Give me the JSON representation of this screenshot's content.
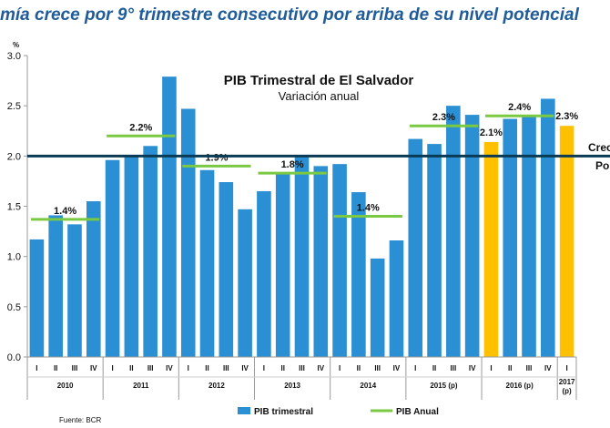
{
  "headline": "mía crece por 9° trimestre consecutivo por arriba de su nivel potencial",
  "source": "Fuente: BCR",
  "right_note": [
    "Crec",
    "Po"
  ],
  "colors": {
    "quarterly": "#2A8FD3",
    "forecast": "#FFC000",
    "annual": "#7AC943",
    "potential_line": "#0B3B54",
    "headline": "#1F5C99"
  },
  "chart_data": {
    "type": "bar",
    "title": "PIB Trimestral de El Salvador",
    "subtitle": "Variación anual",
    "ylabel": "%",
    "ylim": [
      0,
      3.0
    ],
    "yticks": [
      "0.0",
      "0.5",
      "1.0",
      "1.5",
      "2.0",
      "2.5",
      "3.0"
    ],
    "quarters": [
      "I",
      "II",
      "III",
      "IV",
      "I",
      "II",
      "III",
      "IV",
      "I",
      "II",
      "III",
      "IV",
      "I",
      "II",
      "III",
      "IV",
      "I",
      "II",
      "III",
      "IV",
      "I",
      "II",
      "III",
      "IV",
      "I",
      "II",
      "III",
      "IV",
      "I"
    ],
    "values": [
      1.17,
      1.41,
      1.32,
      1.55,
      1.96,
      2.0,
      2.1,
      2.79,
      2.47,
      1.86,
      1.74,
      1.47,
      1.65,
      1.82,
      2.0,
      1.9,
      1.92,
      1.64,
      0.98,
      1.16,
      2.17,
      2.12,
      2.5,
      2.41,
      2.14,
      2.37,
      2.4,
      2.57,
      2.3
    ],
    "highlighted": [
      24,
      28
    ],
    "years": [
      {
        "label": "2010",
        "start": 0,
        "count": 4
      },
      {
        "label": "2011",
        "start": 4,
        "count": 4
      },
      {
        "label": "2012",
        "start": 8,
        "count": 4
      },
      {
        "label": "2013",
        "start": 12,
        "count": 4
      },
      {
        "label": "2014",
        "start": 16,
        "count": 4
      },
      {
        "label": "2015 (p)",
        "start": 20,
        "count": 4
      },
      {
        "label": "2016 (p)",
        "start": 24,
        "count": 4
      },
      {
        "label": "2017 (p)",
        "start": 28,
        "count": 1
      }
    ],
    "annual": [
      {
        "label": "1.4%",
        "value": 1.37,
        "start": 0,
        "count": 4
      },
      {
        "label": "2.2%",
        "value": 2.2,
        "start": 4,
        "count": 4
      },
      {
        "label": "1.9%",
        "value": 1.9,
        "start": 8,
        "count": 4
      },
      {
        "label": "1.8%",
        "value": 1.83,
        "start": 12,
        "count": 4
      },
      {
        "label": "1.4%",
        "value": 1.4,
        "start": 16,
        "count": 4
      },
      {
        "label": "2.3%",
        "value": 2.3,
        "start": 20,
        "count": 4
      },
      {
        "label": "2.4%",
        "value": 2.4,
        "start": 24,
        "count": 4
      }
    ],
    "extra_labels": [
      {
        "label": "2.1%",
        "index": 24
      },
      {
        "label": "2.3%",
        "index": 28
      }
    ],
    "potential": 2.0,
    "legend": [
      "PIB trimestral",
      "PIB Anual"
    ]
  }
}
